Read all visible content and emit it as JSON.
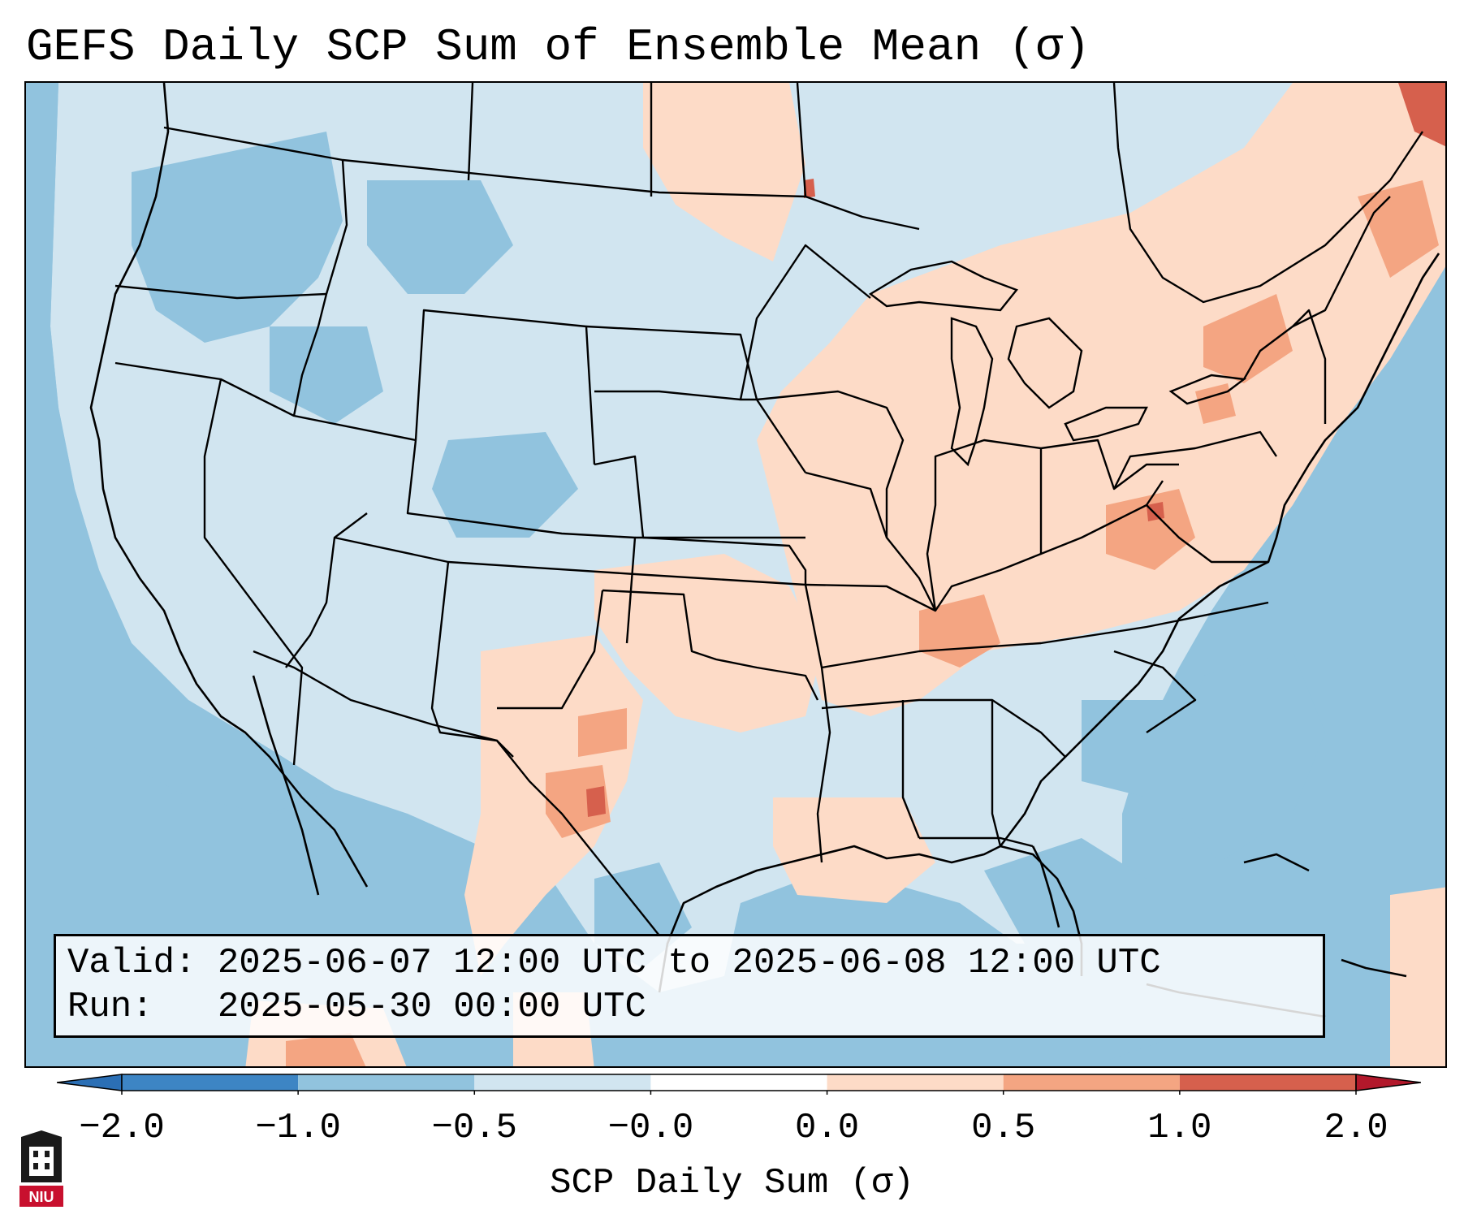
{
  "title": "GEFS Daily SCP Sum of Ensemble Mean (σ)",
  "info": {
    "valid_label": "Valid:",
    "valid_value": "2025-06-07 12:00 UTC to 2025-06-08 12:00 UTC",
    "run_label": "Run:",
    "run_value": "2025-05-30 00:00 UTC"
  },
  "colorbar": {
    "label": "SCP Daily Sum (σ)",
    "ticks": [
      "−2.0",
      "−1.0",
      "−0.5",
      "−0.0",
      "0.0",
      "0.5",
      "1.0",
      "2.0"
    ],
    "bins": [
      {
        "color": "#2b6fb5"
      },
      {
        "color": "#3d85c4"
      },
      {
        "color": "#91c3de"
      },
      {
        "color": "#d1e5f0"
      },
      {
        "color": "#ffffff"
      },
      {
        "color": "#fddbc7"
      },
      {
        "color": "#f4a582"
      },
      {
        "color": "#d6604d"
      },
      {
        "color": "#b2182b"
      }
    ]
  },
  "map": {
    "region": "Contiguous United States",
    "ocean_color": "#91c3de",
    "land_color": "#d1e5f0"
  },
  "logo": {
    "text": "NIU"
  }
}
